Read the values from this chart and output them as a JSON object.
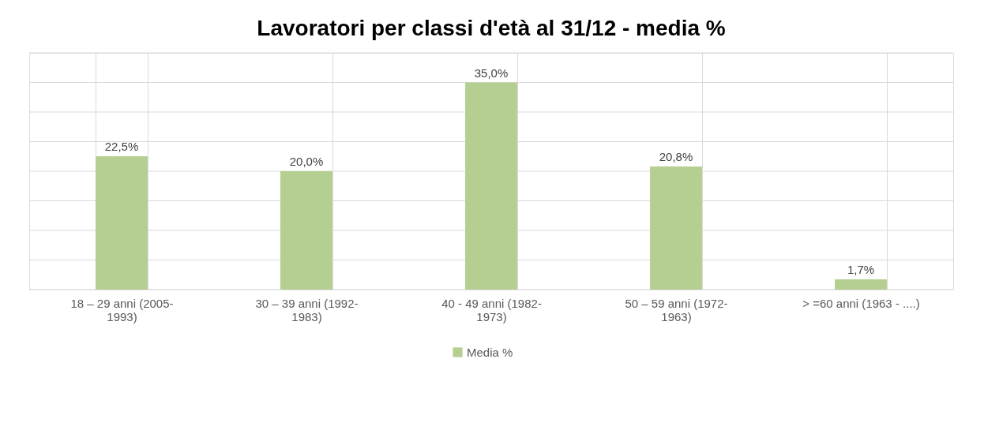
{
  "chart_data": {
    "type": "bar",
    "title": "Lavoratori per classi d'età al 31/12 - media %",
    "categories": [
      "18 – 29 anni (2005-1993)",
      "30 – 39 anni (1992-1983)",
      "40 - 49 anni (1982-1973)",
      "50 – 59 anni (1972-1963)",
      "> =60 anni (1963 - ....)"
    ],
    "series": [
      {
        "name": "Media %",
        "color": "#b5cf92",
        "values": [
          22.5,
          20.0,
          35.0,
          20.8,
          1.7
        ],
        "value_labels": [
          "22,5%",
          "20,0%",
          "35,0%",
          "20,8%",
          "1,7%"
        ]
      }
    ],
    "ylim": [
      0,
      40
    ],
    "yticks": [
      {
        "value": 0,
        "label": null
      },
      {
        "value": 5,
        "label": null
      },
      {
        "value": 10,
        "label": null
      },
      {
        "value": 15,
        "label": null
      },
      {
        "value": 20,
        "label": null
      },
      {
        "value": 25,
        "label": null
      },
      {
        "value": 30,
        "label": null
      },
      {
        "value": 35,
        "label": null
      },
      {
        "value": 40,
        "label": null
      }
    ],
    "tick_labels": "x",
    "grid": true,
    "legend": "bottom"
  }
}
